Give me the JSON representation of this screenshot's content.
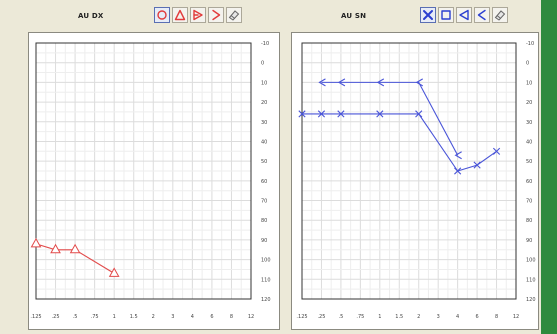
{
  "left_panel": {
    "label": "AU DX",
    "tools": [
      {
        "icon": "circle-icon",
        "color": "#e23b3b",
        "active": true
      },
      {
        "icon": "triangle-icon",
        "color": "#e23b3b",
        "active": false
      },
      {
        "icon": "flag-right-icon",
        "color": "#e23b3b",
        "active": false
      },
      {
        "icon": "chevron-right-icon",
        "color": "#e23b3b",
        "active": false
      },
      {
        "icon": "eraser-icon",
        "color": "#666666",
        "active": false
      }
    ]
  },
  "right_panel": {
    "label": "AU SN",
    "tools": [
      {
        "icon": "x-mark-icon",
        "color": "#2b3fd0",
        "active": true
      },
      {
        "icon": "square-icon",
        "color": "#2b3fd0",
        "active": false
      },
      {
        "icon": "flag-left-icon",
        "color": "#2b3fd0",
        "active": false
      },
      {
        "icon": "chevron-left-icon",
        "color": "#2b3fd0",
        "active": false
      },
      {
        "icon": "eraser-icon",
        "color": "#666666",
        "active": false
      }
    ]
  },
  "chart_data": [
    {
      "type": "line",
      "x_ticks": [
        ".125",
        ".25",
        ".5",
        ".75",
        "1",
        "1.5",
        "2",
        "3",
        "4",
        "6",
        "8",
        "12"
      ],
      "y_ticks": [
        -10,
        0,
        10,
        20,
        30,
        40,
        50,
        60,
        70,
        80,
        90,
        100,
        110,
        120
      ],
      "ylim": [
        -10,
        120
      ],
      "y_inverted": true,
      "grid": true,
      "series": [
        {
          "color": "#e24a4a",
          "marker": "triangle",
          "x": [
            ".125",
            ".25",
            ".5",
            "1"
          ],
          "values": [
            92,
            95,
            95,
            107
          ]
        }
      ]
    },
    {
      "type": "line",
      "x_ticks": [
        ".125",
        ".25",
        ".5",
        ".75",
        "1",
        "1.5",
        "2",
        "3",
        "4",
        "6",
        "8",
        "12"
      ],
      "y_ticks": [
        -10,
        0,
        10,
        20,
        30,
        40,
        50,
        60,
        70,
        80,
        90,
        100,
        110,
        120
      ],
      "ylim": [
        -10,
        120
      ],
      "y_inverted": true,
      "grid": true,
      "series": [
        {
          "color": "#4a55d8",
          "marker": "flag-left",
          "x": [
            ".25",
            ".5",
            "1",
            "2",
            "4"
          ],
          "values": [
            10,
            10,
            10,
            10,
            47
          ]
        },
        {
          "color": "#4a55d8",
          "marker": "x",
          "x": [
            ".125",
            ".25",
            ".5",
            "1",
            "2",
            "4",
            "6",
            "8"
          ],
          "values": [
            26,
            26,
            26,
            26,
            26,
            55,
            52,
            45
          ]
        }
      ]
    }
  ]
}
